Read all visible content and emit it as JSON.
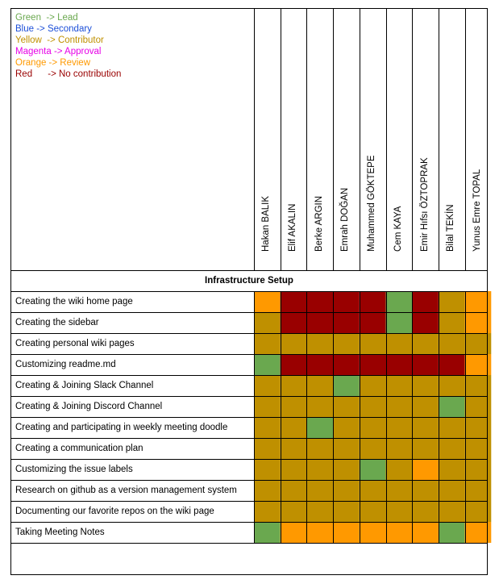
{
  "legend": [
    {
      "label": "Green  -> Lead",
      "color": "#6aa84f"
    },
    {
      "label": "Blue -> Secondary",
      "color": "#1c4fd8"
    },
    {
      "label": "Yellow  -> Contributor",
      "color": "#bf9000"
    },
    {
      "label": "Magenta -> Approval",
      "color": "#e600e6"
    },
    {
      "label": "Orange -> Review",
      "color": "#ff9900"
    },
    {
      "label": "Red      -> No contribution",
      "color": "#990000"
    }
  ],
  "members": [
    "Hakan BALIK",
    "Elif AKALIN",
    "Berke ARGIN",
    "Emrah DOĞAN",
    "Muhammed GÖKTEPE",
    "Cem KAYA",
    "Emir Hıfsı ÖZTOPRAK",
    "Bilal TEKİN",
    "Yunus Emre TOPAL"
  ],
  "section_title": "Infrastructure Setup",
  "status_colors": {
    "G": "#6aa84f",
    "Y": "#bf9000",
    "R": "#990000",
    "O": "#ff9900"
  },
  "tasks": [
    {
      "label": "Creating the wiki home page",
      "roles": [
        "O",
        "R",
        "R",
        "R",
        "R",
        "G",
        "R",
        "Y",
        "O"
      ]
    },
    {
      "label": "Creating the sidebar",
      "roles": [
        "Y",
        "R",
        "R",
        "R",
        "R",
        "G",
        "R",
        "Y",
        "O"
      ]
    },
    {
      "label": "Creating personal wiki pages",
      "roles": [
        "Y",
        "Y",
        "Y",
        "Y",
        "Y",
        "Y",
        "Y",
        "Y",
        "Y"
      ]
    },
    {
      "label": "Customizing readme.md",
      "roles": [
        "G",
        "R",
        "R",
        "R",
        "R",
        "R",
        "R",
        "R",
        "O"
      ]
    },
    {
      "label": "Creating & Joining Slack Channel",
      "roles": [
        "Y",
        "Y",
        "Y",
        "G",
        "Y",
        "Y",
        "Y",
        "Y",
        "Y"
      ]
    },
    {
      "label": "Creating & Joining Discord Channel",
      "roles": [
        "Y",
        "Y",
        "Y",
        "Y",
        "Y",
        "Y",
        "Y",
        "G",
        "Y"
      ]
    },
    {
      "label": "Creating and participating in weekly meeting doodle",
      "roles": [
        "Y",
        "Y",
        "G",
        "Y",
        "Y",
        "Y",
        "Y",
        "Y",
        "Y"
      ]
    },
    {
      "label": "Creating a communication plan",
      "roles": [
        "Y",
        "Y",
        "Y",
        "Y",
        "Y",
        "Y",
        "Y",
        "Y",
        "Y"
      ]
    },
    {
      "label": "Customizing the issue labels",
      "roles": [
        "Y",
        "Y",
        "Y",
        "Y",
        "G",
        "Y",
        "O",
        "Y",
        "Y"
      ]
    },
    {
      "label": "Research on github as a version management system",
      "roles": [
        "Y",
        "Y",
        "Y",
        "Y",
        "Y",
        "Y",
        "Y",
        "Y",
        "Y"
      ]
    },
    {
      "label": "Documenting our favorite repos on the wiki page",
      "roles": [
        "Y",
        "Y",
        "Y",
        "Y",
        "Y",
        "Y",
        "Y",
        "Y",
        "Y"
      ]
    },
    {
      "label": "Taking Meeting Notes",
      "roles": [
        "G",
        "O",
        "O",
        "O",
        "O",
        "O",
        "O",
        "G",
        "O"
      ]
    }
  ]
}
